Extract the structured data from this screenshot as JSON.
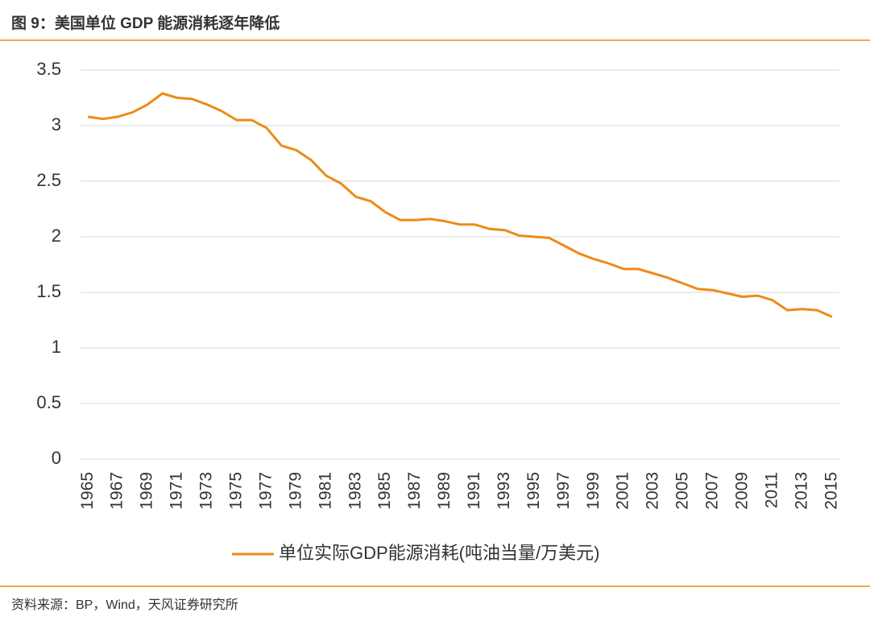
{
  "header": {
    "title": "图 9：美国单位 GDP 能源消耗逐年降低"
  },
  "footer": {
    "source": "资料来源：BP，Wind，天风证券研究所"
  },
  "chart_data": {
    "type": "line",
    "x": [
      1965,
      1966,
      1967,
      1968,
      1969,
      1970,
      1971,
      1972,
      1973,
      1974,
      1975,
      1976,
      1977,
      1978,
      1979,
      1980,
      1981,
      1982,
      1983,
      1984,
      1985,
      1986,
      1987,
      1988,
      1989,
      1990,
      1991,
      1992,
      1993,
      1994,
      1995,
      1996,
      1997,
      1998,
      1999,
      2000,
      2001,
      2002,
      2003,
      2004,
      2005,
      2006,
      2007,
      2008,
      2009,
      2010,
      2011,
      2012,
      2013,
      2014,
      2015
    ],
    "series": [
      {
        "name": "单位实际GDP能源消耗(吨油当量/万美元)",
        "color": "#ed8b16",
        "values": [
          3.08,
          3.06,
          3.08,
          3.12,
          3.19,
          3.29,
          3.25,
          3.24,
          3.19,
          3.13,
          3.05,
          3.05,
          2.98,
          2.82,
          2.78,
          2.69,
          2.55,
          2.48,
          2.36,
          2.32,
          2.22,
          2.15,
          2.15,
          2.16,
          2.14,
          2.11,
          2.11,
          2.07,
          2.06,
          2.01,
          2.0,
          1.99,
          1.92,
          1.85,
          1.8,
          1.76,
          1.71,
          1.71,
          1.67,
          1.63,
          1.58,
          1.53,
          1.52,
          1.49,
          1.46,
          1.47,
          1.43,
          1.34,
          1.35,
          1.34,
          1.28
        ]
      }
    ],
    "xlim": [
      1964.5,
      2015.5
    ],
    "xticks": [
      1965,
      1967,
      1969,
      1971,
      1973,
      1975,
      1977,
      1979,
      1981,
      1983,
      1985,
      1987,
      1989,
      1991,
      1993,
      1995,
      1997,
      1999,
      2001,
      2003,
      2005,
      2007,
      2009,
      2011,
      2013,
      2015
    ],
    "ylim": [
      0,
      3.5
    ],
    "yticks": [
      0,
      0.5,
      1,
      1.5,
      2,
      2.5,
      3,
      3.5
    ],
    "grid": true,
    "legend": "bottom"
  }
}
